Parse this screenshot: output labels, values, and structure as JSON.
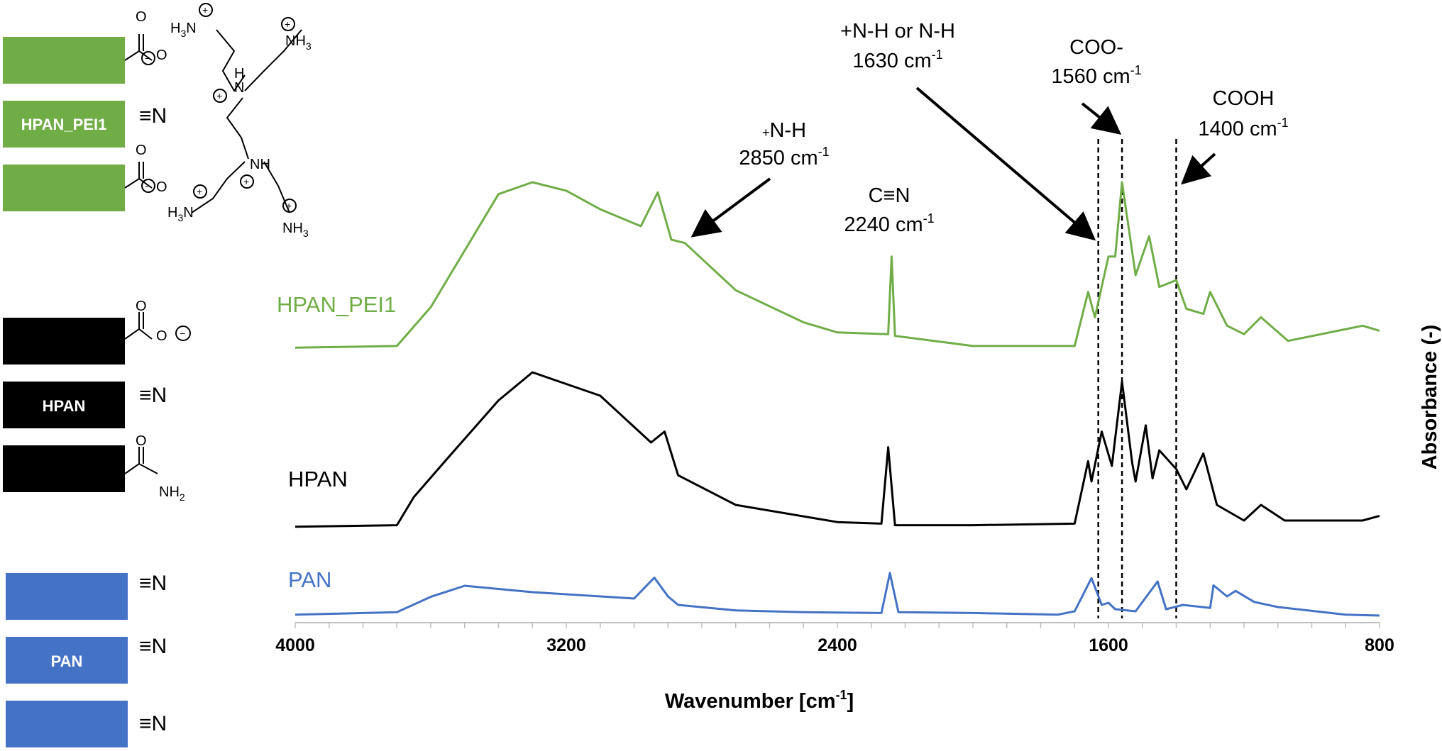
{
  "colors": {
    "hpan_pei1": "#70ad47",
    "hpan": "#000000",
    "pan": "#4472c4"
  },
  "left_panel": {
    "hpan_pei1_box_label": "HPAN_PEI1",
    "hpan_box_label": "HPAN",
    "pan_box_label": "PAN",
    "nitrile": "≡N"
  },
  "chart_data": {
    "type": "line",
    "xlabel": "Wavenumber [cm",
    "xlabel_sup": "-1",
    "xlabel_end": "]",
    "ylabel": "Absorbance (-)",
    "xlim": [
      4000,
      800
    ],
    "x_reversed": true,
    "xticks": [
      "4000",
      "3200",
      "2400",
      "1600",
      "800"
    ],
    "grid": false,
    "series": [
      {
        "name": "HPAN_PEI1",
        "color": "#70ad47",
        "points": [
          [
            4000,
            0.02
          ],
          [
            3700,
            0.03
          ],
          [
            3600,
            0.26
          ],
          [
            3400,
            0.93
          ],
          [
            3300,
            1.0
          ],
          [
            3200,
            0.95
          ],
          [
            3100,
            0.84
          ],
          [
            2980,
            0.74
          ],
          [
            2930,
            0.94
          ],
          [
            2890,
            0.66
          ],
          [
            2850,
            0.64
          ],
          [
            2700,
            0.36
          ],
          [
            2500,
            0.17
          ],
          [
            2400,
            0.11
          ],
          [
            2250,
            0.1
          ],
          [
            2240,
            0.56
          ],
          [
            2230,
            0.09
          ],
          [
            2000,
            0.03
          ],
          [
            1700,
            0.03
          ],
          [
            1660,
            0.35
          ],
          [
            1640,
            0.2
          ],
          [
            1600,
            0.56
          ],
          [
            1580,
            0.56
          ],
          [
            1560,
            1.0
          ],
          [
            1520,
            0.45
          ],
          [
            1480,
            0.68
          ],
          [
            1450,
            0.38
          ],
          [
            1400,
            0.42
          ],
          [
            1370,
            0.25
          ],
          [
            1320,
            0.22
          ],
          [
            1300,
            0.35
          ],
          [
            1250,
            0.15
          ],
          [
            1200,
            0.1
          ],
          [
            1150,
            0.2
          ],
          [
            1070,
            0.06
          ],
          [
            850,
            0.15
          ],
          [
            800,
            0.12
          ]
        ]
      },
      {
        "name": "HPAN",
        "color": "#000000",
        "points": [
          [
            4000,
            0.01
          ],
          [
            3700,
            0.02
          ],
          [
            3650,
            0.2
          ],
          [
            3550,
            0.45
          ],
          [
            3400,
            0.82
          ],
          [
            3300,
            1.0
          ],
          [
            3100,
            0.85
          ],
          [
            2950,
            0.55
          ],
          [
            2910,
            0.62
          ],
          [
            2870,
            0.34
          ],
          [
            2700,
            0.15
          ],
          [
            2400,
            0.04
          ],
          [
            2270,
            0.03
          ],
          [
            2250,
            0.52
          ],
          [
            2230,
            0.02
          ],
          [
            2200,
            0.02
          ],
          [
            2000,
            0.02
          ],
          [
            1700,
            0.03
          ],
          [
            1660,
            0.43
          ],
          [
            1650,
            0.3
          ],
          [
            1620,
            0.62
          ],
          [
            1590,
            0.4
          ],
          [
            1560,
            0.94
          ],
          [
            1530,
            0.42
          ],
          [
            1520,
            0.3
          ],
          [
            1490,
            0.66
          ],
          [
            1470,
            0.32
          ],
          [
            1450,
            0.5
          ],
          [
            1400,
            0.38
          ],
          [
            1370,
            0.25
          ],
          [
            1320,
            0.48
          ],
          [
            1280,
            0.15
          ],
          [
            1200,
            0.05
          ],
          [
            1150,
            0.15
          ],
          [
            1080,
            0.05
          ],
          [
            850,
            0.05
          ],
          [
            800,
            0.08
          ]
        ]
      },
      {
        "name": "PAN",
        "color": "#4472c4",
        "points": [
          [
            4000,
            0.02
          ],
          [
            3700,
            0.08
          ],
          [
            3600,
            0.44
          ],
          [
            3500,
            0.7
          ],
          [
            3300,
            0.55
          ],
          [
            3000,
            0.4
          ],
          [
            2940,
            0.89
          ],
          [
            2900,
            0.45
          ],
          [
            2870,
            0.25
          ],
          [
            2700,
            0.12
          ],
          [
            2500,
            0.08
          ],
          [
            2270,
            0.06
          ],
          [
            2245,
            1.0
          ],
          [
            2220,
            0.08
          ],
          [
            2000,
            0.06
          ],
          [
            1750,
            0.02
          ],
          [
            1700,
            0.1
          ],
          [
            1650,
            0.88
          ],
          [
            1620,
            0.25
          ],
          [
            1600,
            0.3
          ],
          [
            1580,
            0.15
          ],
          [
            1520,
            0.1
          ],
          [
            1455,
            0.8
          ],
          [
            1430,
            0.15
          ],
          [
            1380,
            0.25
          ],
          [
            1300,
            0.18
          ],
          [
            1290,
            0.71
          ],
          [
            1250,
            0.45
          ],
          [
            1225,
            0.58
          ],
          [
            1170,
            0.32
          ],
          [
            1100,
            0.2
          ],
          [
            900,
            0.02
          ],
          [
            800,
            0.0
          ]
        ]
      }
    ],
    "annotations": [
      {
        "line1": "+",
        "line1b": "N-H",
        "line2": "2850 cm",
        "sup": "-1"
      },
      {
        "line1": "C≡N",
        "line2": "2240 cm",
        "sup": "-1"
      },
      {
        "line1": "+N-H or N-H",
        "line2": "1630 cm",
        "sup": "-1"
      },
      {
        "line1": "COO-",
        "line2": "1560 cm",
        "sup": "-1"
      },
      {
        "line1": "COOH",
        "line2": "1400 cm",
        "sup": "-1"
      }
    ],
    "dashed_lines_at": [
      1630,
      1560,
      1400
    ]
  }
}
